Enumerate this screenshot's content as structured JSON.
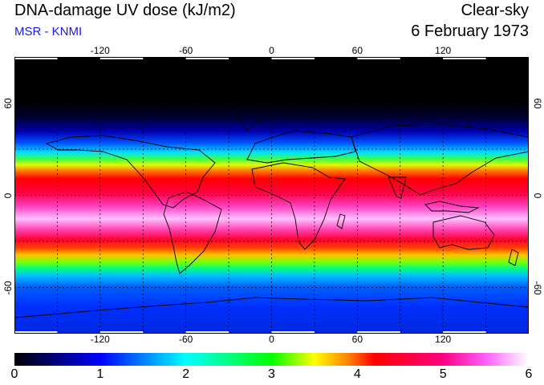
{
  "header": {
    "title": "DNA-damage UV dose (kJ/m2)",
    "subtitle": "MSR - KNMI",
    "sky_condition": "Clear-sky",
    "date": "6 February 1973"
  },
  "map": {
    "x_ticks": [
      -120,
      -60,
      0,
      60,
      120
    ],
    "y_ticks": [
      60,
      0,
      -60
    ],
    "x_tick_labels": [
      "-120",
      "-60",
      "0",
      "60",
      "120"
    ],
    "y_tick_labels": [
      "60",
      "0",
      "-60"
    ],
    "lon_range": [
      -180,
      180
    ],
    "lat_range": [
      -90,
      90
    ]
  },
  "colorbar": {
    "min": 0,
    "max": 6,
    "labels": [
      "0",
      "1",
      "2",
      "3",
      "4",
      "5",
      "6"
    ],
    "stops": [
      {
        "v": 0.0,
        "c": "#000000"
      },
      {
        "v": 0.5,
        "c": "#000080"
      },
      {
        "v": 1.0,
        "c": "#0000ff"
      },
      {
        "v": 1.5,
        "c": "#0080ff"
      },
      {
        "v": 2.0,
        "c": "#00ffff"
      },
      {
        "v": 2.5,
        "c": "#00ff80"
      },
      {
        "v": 3.0,
        "c": "#00ff00"
      },
      {
        "v": 3.5,
        "c": "#ffff00"
      },
      {
        "v": 3.9,
        "c": "#ff8000"
      },
      {
        "v": 4.2,
        "c": "#ff0000"
      },
      {
        "v": 5.0,
        "c": "#ff0080"
      },
      {
        "v": 5.5,
        "c": "#ff60ff"
      },
      {
        "v": 6.0,
        "c": "#ffffff"
      }
    ]
  }
}
